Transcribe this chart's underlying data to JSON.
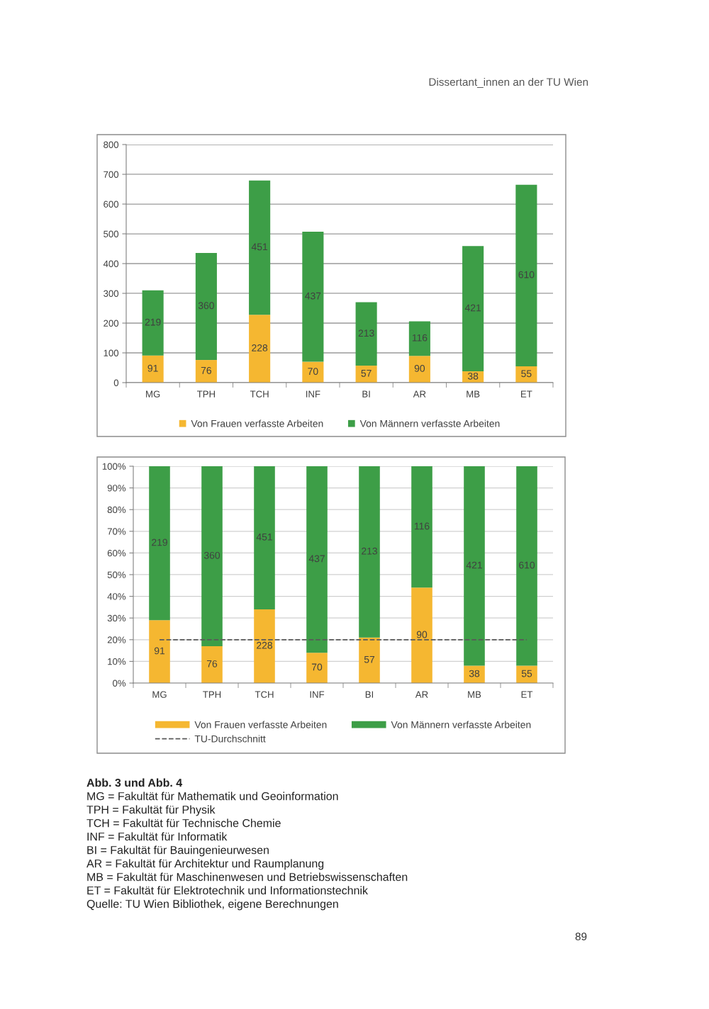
{
  "chart_data": [
    {
      "type": "bar",
      "stacked": true,
      "categories": [
        "MG",
        "TPH",
        "TCH",
        "INF",
        "BI",
        "AR",
        "MB",
        "ET"
      ],
      "series": [
        {
          "name": "Von Frauen verfasste Arbeiten",
          "color": "#f5b731",
          "values": [
            91,
            76,
            228,
            70,
            57,
            90,
            38,
            55
          ]
        },
        {
          "name": "Von Männern verfasste Arbeiten",
          "color": "#3d9e47",
          "values": [
            219,
            360,
            451,
            437,
            213,
            116,
            421,
            610
          ]
        }
      ],
      "ylim": [
        0,
        800
      ],
      "yticks": [
        0,
        100,
        200,
        300,
        400,
        500,
        600,
        700,
        800
      ],
      "grid": "y",
      "legend": "bottom",
      "data_labels": true,
      "annotations": [
        "Dissertant_innen an der TU Wien",
        "Abb. 3 und Abb. 4",
        "MG = Fakultät für Mathematik und Geoinformation",
        "TPH = Fakultät für Physik",
        "TCH = Fakultät für Technische Chemie",
        "INF = Fakultät für Informatik",
        "BI = Fakultät für Bauingenieurwesen",
        "AR = Fakultät für Architektur und Raumplanung",
        "MB = Fakultät für Maschinenwesen und Betriebswissenschaften",
        "ET = Fakultät für Elektrotechnik und Informationstechnik",
        "Quelle: TU Wien Bibliothek, eigene Berechnungen",
        "89"
      ]
    },
    {
      "type": "bar",
      "stacked": true,
      "categories": [
        "MG",
        "TPH",
        "TCH",
        "INF",
        "BI",
        "AR",
        "MB",
        "ET"
      ],
      "series": [
        {
          "name": "Von Frauen verfasste Arbeiten",
          "color": "#f5b731",
          "values": [
            29,
            17,
            34,
            14,
            21,
            44,
            8,
            8
          ]
        },
        {
          "name": "Von Männern verfasste Arbeiten",
          "color": "#3d9e47",
          "values": [
            71,
            83,
            66,
            86,
            79,
            56,
            92,
            92
          ]
        }
      ],
      "ylim": [
        0,
        100
      ],
      "yticks": [
        {
          "value": 0,
          "label": "0%"
        },
        {
          "value": 10,
          "label": "10%"
        },
        {
          "value": 20,
          "label": "20%"
        },
        {
          "value": 30,
          "label": "30%"
        },
        {
          "value": 40,
          "label": "40%"
        },
        {
          "value": 50,
          "label": "50%"
        },
        {
          "value": 60,
          "label": "60%"
        },
        {
          "value": 70,
          "label": "70%"
        },
        {
          "value": 80,
          "label": "80%"
        },
        {
          "value": 90,
          "label": "90%"
        },
        {
          "value": 100,
          "label": "100%"
        }
      ],
      "grid": "y",
      "legend": "bottom",
      "ref_lines": [
        {
          "axis": "y",
          "value": 20,
          "label": "TU-Durchschnitt",
          "color": "#595959",
          "line_style": "dashed"
        }
      ],
      "annotations": [
        "91",
        "76",
        "228",
        "70",
        "57",
        "90",
        "38",
        "55",
        "219",
        "360",
        "451",
        "437",
        "213",
        "116",
        "421",
        "610"
      ]
    }
  ]
}
